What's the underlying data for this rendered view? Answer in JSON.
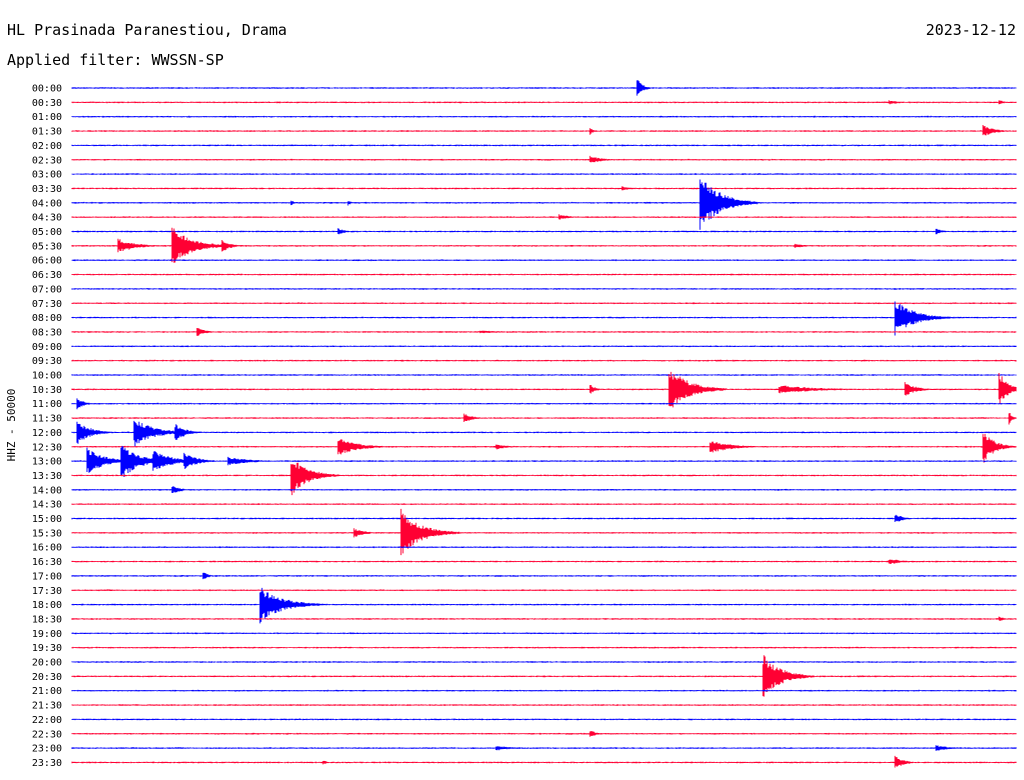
{
  "header": {
    "station": "HL Prasinada Paranestiou, Drama",
    "date": "2023-12-12",
    "filter_label": "Applied filter: WWSSN-SP"
  },
  "chart_data": {
    "type": "helicorder",
    "channel_label": "HHZ - 50000",
    "trace_colors": [
      "#0000ff",
      "#ff0033"
    ],
    "line_start_labels": [
      "00:00",
      "00:30",
      "01:00",
      "01:30",
      "02:00",
      "02:30",
      "03:00",
      "03:30",
      "04:00",
      "04:30",
      "05:00",
      "05:30",
      "06:00",
      "06:30",
      "07:00",
      "07:30",
      "08:00",
      "08:30",
      "09:00",
      "09:30",
      "10:00",
      "10:30",
      "11:00",
      "11:30",
      "12:00",
      "12:30",
      "13:00",
      "13:30",
      "14:00",
      "14:30",
      "15:00",
      "15:30",
      "16:00",
      "16:30",
      "17:00",
      "17:30",
      "18:00",
      "18:30",
      "19:00",
      "19:30",
      "20:00",
      "20:30",
      "21:00",
      "21:30",
      "22:00",
      "22:30",
      "23:00",
      "23:30"
    ],
    "line_duration_minutes": 30,
    "events": [
      {
        "line": 0,
        "minute": 18.0,
        "amplitude": 0.6,
        "duration_minutes": 0.5
      },
      {
        "line": 1,
        "minute": 26.0,
        "amplitude": 0.15,
        "duration_minutes": 1.0
      },
      {
        "line": 1,
        "minute": 29.5,
        "amplitude": 0.15,
        "duration_minutes": 0.5
      },
      {
        "line": 3,
        "minute": 16.5,
        "amplitude": 0.2,
        "duration_minutes": 0.3
      },
      {
        "line": 3,
        "minute": 29.0,
        "amplitude": 0.4,
        "duration_minutes": 1.0
      },
      {
        "line": 5,
        "minute": 16.5,
        "amplitude": 0.25,
        "duration_minutes": 1.2
      },
      {
        "line": 7,
        "minute": 17.5,
        "amplitude": 0.15,
        "duration_minutes": 1.0
      },
      {
        "line": 8,
        "minute": 20.0,
        "amplitude": 2.0,
        "duration_minutes": 1.8
      },
      {
        "line": 8,
        "minute": 7.0,
        "amplitude": 0.15,
        "duration_minutes": 0.3
      },
      {
        "line": 8,
        "minute": 8.8,
        "amplitude": 0.15,
        "duration_minutes": 0.3
      },
      {
        "line": 9,
        "minute": 15.5,
        "amplitude": 0.2,
        "duration_minutes": 1.0
      },
      {
        "line": 10,
        "minute": 8.5,
        "amplitude": 0.2,
        "duration_minutes": 0.6
      },
      {
        "line": 10,
        "minute": 27.5,
        "amplitude": 0.2,
        "duration_minutes": 0.6
      },
      {
        "line": 11,
        "minute": 1.5,
        "amplitude": 0.5,
        "duration_minutes": 1.5
      },
      {
        "line": 11,
        "minute": 3.2,
        "amplitude": 1.4,
        "duration_minutes": 1.8
      },
      {
        "line": 11,
        "minute": 4.8,
        "amplitude": 0.4,
        "duration_minutes": 0.8
      },
      {
        "line": 11,
        "minute": 23.0,
        "amplitude": 0.15,
        "duration_minutes": 1.2
      },
      {
        "line": 16,
        "minute": 26.2,
        "amplitude": 1.2,
        "duration_minutes": 1.8
      },
      {
        "line": 17,
        "minute": 4.0,
        "amplitude": 0.3,
        "duration_minutes": 0.8
      },
      {
        "line": 17,
        "minute": 13.0,
        "amplitude": 0.1,
        "duration_minutes": 2.5
      },
      {
        "line": 21,
        "minute": 16.5,
        "amplitude": 0.3,
        "duration_minutes": 0.5
      },
      {
        "line": 21,
        "minute": 19.0,
        "amplitude": 1.6,
        "duration_minutes": 1.8
      },
      {
        "line": 21,
        "minute": 22.5,
        "amplitude": 0.3,
        "duration_minutes": 3.5
      },
      {
        "line": 21,
        "minute": 26.5,
        "amplitude": 0.5,
        "duration_minutes": 1.0
      },
      {
        "line": 21,
        "minute": 29.5,
        "amplitude": 1.2,
        "duration_minutes": 0.8
      },
      {
        "line": 22,
        "minute": 0.2,
        "amplitude": 0.4,
        "duration_minutes": 0.6
      },
      {
        "line": 23,
        "minute": 12.5,
        "amplitude": 0.3,
        "duration_minutes": 0.8
      },
      {
        "line": 23,
        "minute": 29.8,
        "amplitude": 0.4,
        "duration_minutes": 0.3
      },
      {
        "line": 24,
        "minute": 0.2,
        "amplitude": 0.8,
        "duration_minutes": 1.2
      },
      {
        "line": 24,
        "minute": 2.0,
        "amplitude": 1.0,
        "duration_minutes": 1.8
      },
      {
        "line": 24,
        "minute": 3.3,
        "amplitude": 0.6,
        "duration_minutes": 1.0
      },
      {
        "line": 25,
        "minute": 8.5,
        "amplitude": 0.6,
        "duration_minutes": 1.8
      },
      {
        "line": 25,
        "minute": 13.5,
        "amplitude": 0.2,
        "duration_minutes": 1.0
      },
      {
        "line": 25,
        "minute": 20.3,
        "amplitude": 0.5,
        "duration_minutes": 1.8
      },
      {
        "line": 25,
        "minute": 29.0,
        "amplitude": 1.1,
        "duration_minutes": 1.0
      },
      {
        "line": 26,
        "minute": 0.5,
        "amplitude": 1.0,
        "duration_minutes": 1.5
      },
      {
        "line": 26,
        "minute": 1.6,
        "amplitude": 1.3,
        "duration_minutes": 1.5
      },
      {
        "line": 26,
        "minute": 2.6,
        "amplitude": 0.9,
        "duration_minutes": 1.5
      },
      {
        "line": 26,
        "minute": 3.6,
        "amplitude": 0.6,
        "duration_minutes": 1.2
      },
      {
        "line": 26,
        "minute": 5.0,
        "amplitude": 0.3,
        "duration_minutes": 2.0
      },
      {
        "line": 27,
        "minute": 7.0,
        "amplitude": 1.4,
        "duration_minutes": 1.5
      },
      {
        "line": 28,
        "minute": 3.2,
        "amplitude": 0.3,
        "duration_minutes": 0.8
      },
      {
        "line": 31,
        "minute": 9.0,
        "amplitude": 0.3,
        "duration_minutes": 1.0
      },
      {
        "line": 31,
        "minute": 10.5,
        "amplitude": 1.6,
        "duration_minutes": 1.8
      },
      {
        "line": 30,
        "minute": 26.2,
        "amplitude": 0.3,
        "duration_minutes": 0.8
      },
      {
        "line": 33,
        "minute": 26.0,
        "amplitude": 0.2,
        "duration_minutes": 1.2
      },
      {
        "line": 34,
        "minute": 4.2,
        "amplitude": 0.3,
        "duration_minutes": 0.4
      },
      {
        "line": 36,
        "minute": 6.0,
        "amplitude": 1.3,
        "duration_minutes": 2.0
      },
      {
        "line": 37,
        "minute": 29.5,
        "amplitude": 0.15,
        "duration_minutes": 0.5
      },
      {
        "line": 41,
        "minute": 22.0,
        "amplitude": 1.5,
        "duration_minutes": 1.6
      },
      {
        "line": 45,
        "minute": 16.5,
        "amplitude": 0.25,
        "duration_minutes": 0.5
      },
      {
        "line": 46,
        "minute": 13.5,
        "amplitude": 0.2,
        "duration_minutes": 1.2
      },
      {
        "line": 46,
        "minute": 27.5,
        "amplitude": 0.2,
        "duration_minutes": 1.2
      },
      {
        "line": 47,
        "minute": 26.2,
        "amplitude": 0.4,
        "duration_minutes": 0.8
      },
      {
        "line": 47,
        "minute": 8.0,
        "amplitude": 0.15,
        "duration_minutes": 0.4
      }
    ]
  }
}
